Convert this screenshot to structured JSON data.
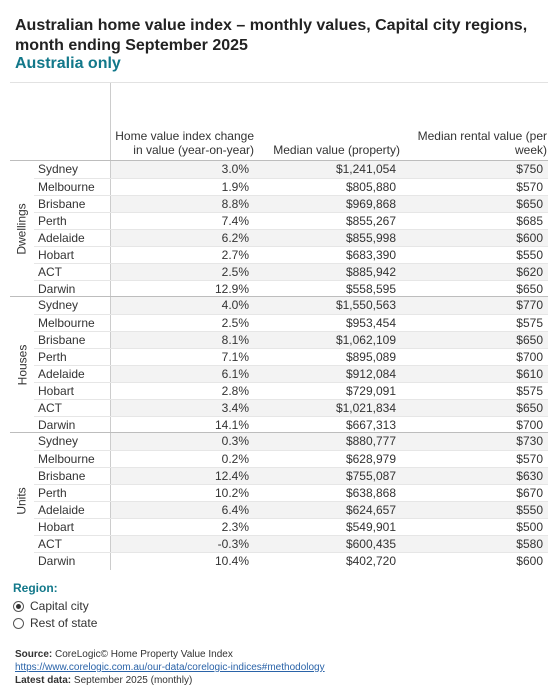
{
  "title": "Australian home value index – monthly values, Capital city regions, month ending September 2025",
  "subtitle": "Australia only",
  "columns": [
    "Home value index change in value (year-on-year)",
    "Median value (property)",
    "Median rental value (per week)"
  ],
  "groups": [
    {
      "label": "Dwellings",
      "rows": [
        {
          "region": "Sydney",
          "change": "3.0%",
          "median": "$1,241,054",
          "rent": "$750"
        },
        {
          "region": "Melbourne",
          "change": "1.9%",
          "median": "$805,880",
          "rent": "$570"
        },
        {
          "region": "Brisbane",
          "change": "8.8%",
          "median": "$969,868",
          "rent": "$650"
        },
        {
          "region": "Perth",
          "change": "7.4%",
          "median": "$855,267",
          "rent": "$685"
        },
        {
          "region": "Adelaide",
          "change": "6.2%",
          "median": "$855,998",
          "rent": "$600"
        },
        {
          "region": "Hobart",
          "change": "2.7%",
          "median": "$683,390",
          "rent": "$550"
        },
        {
          "region": "ACT",
          "change": "2.5%",
          "median": "$885,942",
          "rent": "$620"
        },
        {
          "region": "Darwin",
          "change": "12.9%",
          "median": "$558,595",
          "rent": "$650"
        }
      ]
    },
    {
      "label": "Houses",
      "rows": [
        {
          "region": "Sydney",
          "change": "4.0%",
          "median": "$1,550,563",
          "rent": "$770"
        },
        {
          "region": "Melbourne",
          "change": "2.5%",
          "median": "$953,454",
          "rent": "$575"
        },
        {
          "region": "Brisbane",
          "change": "8.1%",
          "median": "$1,062,109",
          "rent": "$650"
        },
        {
          "region": "Perth",
          "change": "7.1%",
          "median": "$895,089",
          "rent": "$700"
        },
        {
          "region": "Adelaide",
          "change": "6.1%",
          "median": "$912,084",
          "rent": "$610"
        },
        {
          "region": "Hobart",
          "change": "2.8%",
          "median": "$729,091",
          "rent": "$575"
        },
        {
          "region": "ACT",
          "change": "3.4%",
          "median": "$1,021,834",
          "rent": "$650"
        },
        {
          "region": "Darwin",
          "change": "14.1%",
          "median": "$667,313",
          "rent": "$700"
        }
      ]
    },
    {
      "label": "Units",
      "rows": [
        {
          "region": "Sydney",
          "change": "0.3%",
          "median": "$880,777",
          "rent": "$730"
        },
        {
          "region": "Melbourne",
          "change": "0.2%",
          "median": "$628,979",
          "rent": "$570"
        },
        {
          "region": "Brisbane",
          "change": "12.4%",
          "median": "$755,087",
          "rent": "$630"
        },
        {
          "region": "Perth",
          "change": "10.2%",
          "median": "$638,868",
          "rent": "$670"
        },
        {
          "region": "Adelaide",
          "change": "6.4%",
          "median": "$624,657",
          "rent": "$550"
        },
        {
          "region": "Hobart",
          "change": "2.3%",
          "median": "$549,901",
          "rent": "$500"
        },
        {
          "region": "ACT",
          "change": "-0.3%",
          "median": "$600,435",
          "rent": "$580"
        },
        {
          "region": "Darwin",
          "change": "10.4%",
          "median": "$402,720",
          "rent": "$600"
        }
      ]
    }
  ],
  "filter": {
    "title": "Region:",
    "options": [
      {
        "label": "Capital city",
        "selected": true
      },
      {
        "label": "Rest of state",
        "selected": false
      }
    ]
  },
  "footer": {
    "source_label": "Source:",
    "source_text": "CoreLogic© Home Property Value Index",
    "link": "https://www.corelogic.com.au/our-data/corelogic-indices#methodology",
    "latest_label": "Latest data:",
    "latest_text": "September 2025 (monthly)"
  },
  "colors": {
    "accent": "#12788a",
    "link": "#2a63a8",
    "stripe": "#f3f3f3"
  }
}
